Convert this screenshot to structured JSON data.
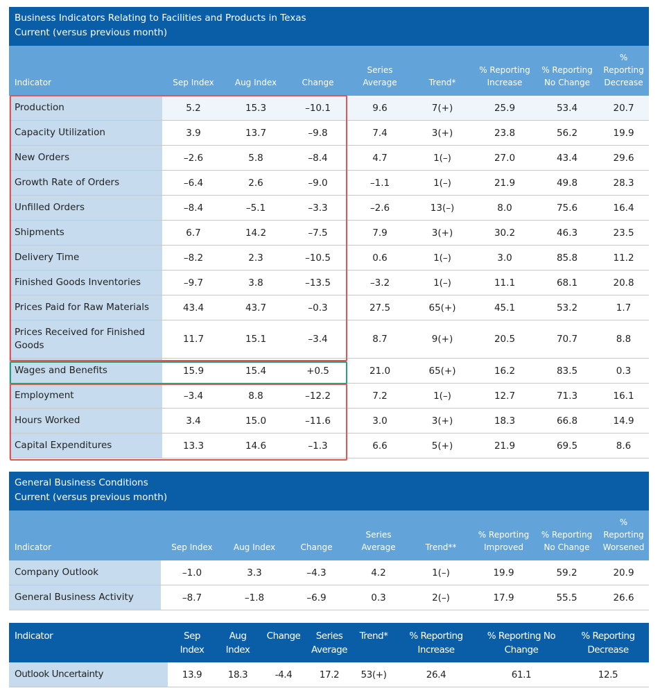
{
  "table1": {
    "title": "Business Indicators Relating to Facilities and Products in Texas",
    "subtitle": "Current (versus previous month)",
    "headers": [
      "Indicator",
      "Sep Index",
      "Aug Index",
      "Change",
      "Series Average",
      "Trend*",
      "% Reporting Increase",
      "% Reporting No Change",
      "% Reporting Decrease"
    ],
    "rows": [
      [
        "Production",
        "5.2",
        "15.3",
        "–10.1",
        "9.6",
        "7(+)",
        "25.9",
        "53.4",
        "20.7"
      ],
      [
        "Capacity Utilization",
        "3.9",
        "13.7",
        "–9.8",
        "7.4",
        "3(+)",
        "23.8",
        "56.2",
        "19.9"
      ],
      [
        "New Orders",
        "–2.6",
        "5.8",
        "–8.4",
        "4.7",
        "1(–)",
        "27.0",
        "43.4",
        "29.6"
      ],
      [
        "Growth Rate of Orders",
        "–6.4",
        "2.6",
        "–9.0",
        "–1.1",
        "1(–)",
        "21.9",
        "49.8",
        "28.3"
      ],
      [
        "Unfilled Orders",
        "–8.4",
        "–5.1",
        "–3.3",
        "–2.6",
        "13(–)",
        "8.0",
        "75.6",
        "16.4"
      ],
      [
        "Shipments",
        "6.7",
        "14.2",
        "–7.5",
        "7.9",
        "3(+)",
        "30.2",
        "46.3",
        "23.5"
      ],
      [
        "Delivery Time",
        "–8.2",
        "2.3",
        "–10.5",
        "0.6",
        "1(–)",
        "3.0",
        "85.8",
        "11.2"
      ],
      [
        "Finished Goods Inventories",
        "–9.7",
        "3.8",
        "–13.5",
        "–3.2",
        "1(–)",
        "11.1",
        "68.1",
        "20.8"
      ],
      [
        "Prices Paid for Raw Materials",
        "43.4",
        "43.7",
        "–0.3",
        "27.5",
        "65(+)",
        "45.1",
        "53.2",
        "1.7"
      ],
      [
        "Prices Received for Finished Goods",
        "11.7",
        "15.1",
        "–3.4",
        "8.7",
        "9(+)",
        "20.5",
        "70.7",
        "8.8"
      ],
      [
        "Wages and Benefits",
        "15.9",
        "15.4",
        "+0.5",
        "21.0",
        "65(+)",
        "16.2",
        "83.5",
        "0.3"
      ],
      [
        "Employment",
        "–3.4",
        "8.8",
        "–12.2",
        "7.2",
        "1(–)",
        "12.7",
        "71.3",
        "16.1"
      ],
      [
        "Hours Worked",
        "3.4",
        "15.0",
        "–11.6",
        "3.0",
        "3(+)",
        "18.3",
        "66.8",
        "14.9"
      ],
      [
        "Capital Expenditures",
        "13.3",
        "14.6",
        "–1.3",
        "6.6",
        "5(+)",
        "21.9",
        "69.5",
        "8.6"
      ]
    ]
  },
  "table2": {
    "title": "General Business Conditions",
    "subtitle": "Current (versus previous month)",
    "headers": [
      "Indicator",
      "Sep Index",
      "Aug Index",
      "Change",
      "Series Average",
      "Trend**",
      "% Reporting Improved",
      "% Reporting No Change",
      "% Reporting Worsened"
    ],
    "rows": [
      [
        "Company Outlook",
        "–1.0",
        "3.3",
        "–4.3",
        "4.2",
        "1(–)",
        "19.9",
        "59.2",
        "20.9"
      ],
      [
        "General Business Activity",
        "–8.7",
        "–1.8",
        "–6.9",
        "0.3",
        "2(–)",
        "17.9",
        "55.5",
        "26.6"
      ]
    ]
  },
  "table3": {
    "headers": [
      "Indicator",
      "Sep Index",
      "Aug Index",
      "Change",
      "Series Average",
      "Trend*",
      "% Reporting Increase",
      "% Reporting No Change",
      "% Reporting Decrease"
    ],
    "rows": [
      [
        "Outlook Uncertainty",
        "13.9",
        "18.3",
        "-4.4",
        "17.2",
        "53(+)",
        "26.4",
        "61.1",
        "12.5"
      ]
    ]
  },
  "colors": {
    "dark_blue": "#0a5ea8",
    "light_blue": "#62a3d9",
    "indicator_col": "#c6dcee",
    "red_box": "#e05555",
    "green_box": "#2a9d7a"
  }
}
